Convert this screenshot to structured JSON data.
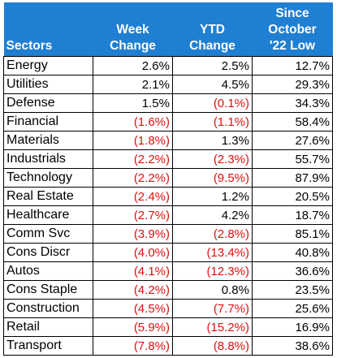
{
  "table": {
    "headers": [
      "Sectors",
      "Week\nChange",
      "YTD\nChange",
      "Since\nOctober\n'22 Low"
    ],
    "rows": [
      [
        "Energy",
        "2.6%",
        "2.5%",
        "12.7%"
      ],
      [
        "Utilities",
        "2.1%",
        "4.5%",
        "29.3%"
      ],
      [
        "Defense",
        "1.5%",
        "(0.1%)",
        "34.3%"
      ],
      [
        "Financial",
        "(1.6%)",
        "(1.1%)",
        "58.4%"
      ],
      [
        "Materials",
        "(1.8%)",
        "1.3%",
        "27.6%"
      ],
      [
        "Industrials",
        "(2.2%)",
        "(2.3%)",
        "55.7%"
      ],
      [
        "Technology",
        "(2.2%)",
        "(9.5%)",
        "87.9%"
      ],
      [
        "Real Estate",
        "(2.4%)",
        "1.2%",
        "20.5%"
      ],
      [
        "Healthcare",
        "(2.7%)",
        "4.2%",
        "18.7%"
      ],
      [
        "Comm Svc",
        "(3.9%)",
        "(2.8%)",
        "85.1%"
      ],
      [
        "Cons Discr",
        "(4.0%)",
        "(13.4%)",
        "40.8%"
      ],
      [
        "Autos",
        "(4.1%)",
        "(12.3%)",
        "36.6%"
      ],
      [
        "Cons Staple",
        "(4.2%)",
        "0.8%",
        "23.5%"
      ],
      [
        "Construction",
        "(4.5%)",
        "(7.7%)",
        "25.6%"
      ],
      [
        "Retail",
        "(5.9%)",
        "(15.2%)",
        "16.9%"
      ],
      [
        "Transport",
        "(7.8%)",
        "(8.8%)",
        "38.6%"
      ]
    ]
  },
  "colors": {
    "header_bg": "#1f7fd2",
    "header_text": "#ffffff",
    "negative": "#e01010",
    "positive": "#000000"
  }
}
